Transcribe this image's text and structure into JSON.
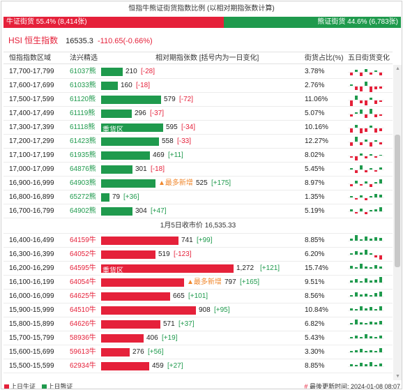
{
  "title": "恒指牛熊证街货指数比例 (以相对期指张数计算)",
  "ratio": {
    "bull_label": "牛证街货 55.4% (8,414张)",
    "bull_share": 0.554,
    "bear_label": "熊证街货 44.6% (6,783张)",
    "bull_color": "#e5213a",
    "bear_color": "#1f9a4d"
  },
  "index": {
    "code": "HSI",
    "name": "恒生指数",
    "value": "16535.3",
    "change": "-110.65(-0.66%)"
  },
  "headers": {
    "range": "恒指指数区域",
    "product": "法兴精选",
    "contracts": "相对期指张数 [括号内为一日变化]",
    "share": "街货占比(%)",
    "five_day": "五日街货变化"
  },
  "bear_rows": [
    {
      "range": "17,700-17,799",
      "code": "61037熊",
      "value": 210,
      "change": "[-28]",
      "share": "3.78%",
      "mini": [
        -4,
        3,
        -5,
        4,
        -3,
        2,
        -4
      ]
    },
    {
      "range": "17,600-17,699",
      "code": "61033熊",
      "value": 160,
      "change": "[-18]",
      "share": "2.76%",
      "mini": [
        2,
        -5,
        -7,
        6,
        -8,
        -4,
        -3
      ]
    },
    {
      "range": "17,500-17,599",
      "code": "61120熊",
      "value": 579,
      "change": "[-72]",
      "share": "11.06%",
      "mini": [
        -8,
        6,
        -4,
        -7,
        3,
        -5,
        -2
      ]
    },
    {
      "range": "17,400-17,499",
      "code": "61119熊",
      "value": 296,
      "change": "[-37]",
      "share": "5.07%",
      "mini": [
        -3,
        2,
        6,
        -5,
        7,
        -4,
        -2
      ]
    },
    {
      "range": "17,300-17,399",
      "code": "61118熊",
      "value": 595,
      "change": "[-34]",
      "share": "10.16%",
      "zone": "重货区",
      "mini": [
        -6,
        4,
        -7,
        -5,
        3,
        -6,
        -4
      ]
    },
    {
      "range": "17,200-17,299",
      "code": "61423熊",
      "value": 558,
      "change": "[-33]",
      "share": "12.27%",
      "mini": [
        -5,
        7,
        -4,
        3,
        -6,
        2,
        -3
      ]
    },
    {
      "range": "17,100-17,199",
      "code": "61935熊",
      "value": 469,
      "change": "[+11]",
      "share": "8.02%",
      "mini": [
        -2,
        -6,
        3,
        -3,
        2,
        -2,
        1
      ]
    },
    {
      "range": "17,000-17,099",
      "code": "64876熊",
      "value": 301,
      "change": "[-18]",
      "share": "5.45%",
      "mini": [
        2,
        -4,
        6,
        -3,
        2,
        -2,
        3
      ]
    },
    {
      "range": "16,900-16,999",
      "code": "64903熊",
      "value": 525,
      "change": "[+175]",
      "share": "8.97%",
      "tag": "▲最多新增",
      "mini": [
        -3,
        4,
        -2,
        3,
        -4,
        2,
        6
      ]
    },
    {
      "range": "16,800-16,899",
      "code": "65272熊",
      "value": 79,
      "change": "[+36]",
      "share": "1.35%",
      "mini": [
        2,
        -2,
        3,
        -3,
        2,
        5,
        4
      ]
    },
    {
      "range": "16,700-16,799",
      "code": "64902熊",
      "value": 304,
      "change": "[+47]",
      "share": "5.19%",
      "mini": [
        3,
        -2,
        4,
        -3,
        2,
        3,
        6
      ]
    }
  ],
  "close_label": "1月5日收市价 16,535.33",
  "bull_rows": [
    {
      "range": "16,400-16,499",
      "code": "64159牛",
      "value": 741,
      "change": "[+99]",
      "share": "8.85%",
      "mini": [
        3,
        8,
        2,
        6,
        3,
        5,
        4
      ]
    },
    {
      "range": "16,300-16,399",
      "code": "64052牛",
      "value": 519,
      "change": "[-123]",
      "share": "6.20%",
      "mini": [
        2,
        5,
        3,
        7,
        2,
        -3,
        -6
      ]
    },
    {
      "range": "16,200-16,299",
      "code": "64595牛",
      "value": 1272,
      "change": "[+121]",
      "share": "15.74%",
      "zone": "重货区",
      "mini": [
        4,
        2,
        7,
        3,
        2,
        5,
        3
      ]
    },
    {
      "range": "16,100-16,199",
      "code": "64054牛",
      "value": 797,
      "change": "[+165]",
      "share": "9.51%",
      "tag": "▲最多新增",
      "mini": [
        3,
        5,
        2,
        6,
        3,
        4,
        8
      ]
    },
    {
      "range": "16,000-16,099",
      "code": "64625牛",
      "value": 665,
      "change": "[+101]",
      "share": "8.56%",
      "mini": [
        2,
        6,
        3,
        4,
        2,
        5,
        7
      ]
    },
    {
      "range": "15,900-15,999",
      "code": "64510牛",
      "value": 908,
      "change": "[+95]",
      "share": "10.84%",
      "mini": [
        3,
        2,
        6,
        3,
        5,
        2,
        6
      ]
    },
    {
      "range": "15,800-15,899",
      "code": "64626牛",
      "value": 571,
      "change": "[+37]",
      "share": "6.82%",
      "mini": [
        2,
        7,
        3,
        2,
        4,
        3,
        5
      ]
    },
    {
      "range": "15,700-15,799",
      "code": "58936牛",
      "value": 406,
      "change": "[+19]",
      "share": "5.43%",
      "mini": [
        2,
        4,
        2,
        6,
        3,
        2,
        4
      ]
    },
    {
      "range": "15,600-15,699",
      "code": "59613牛",
      "value": 276,
      "change": "[+56]",
      "share": "3.30%",
      "mini": [
        2,
        3,
        5,
        2,
        3,
        2,
        6
      ]
    },
    {
      "range": "15,500-15,599",
      "code": "62934牛",
      "value": 459,
      "change": "[+27]",
      "share": "8.85%",
      "mini": [
        3,
        2,
        5,
        3,
        6,
        2,
        4
      ]
    }
  ],
  "footer": {
    "legend_bull": "上日牛证",
    "legend_bear": "上日熊证",
    "update_hash": "#",
    "update_label": "最後更新时间: 2024-01-08 08:07"
  }
}
